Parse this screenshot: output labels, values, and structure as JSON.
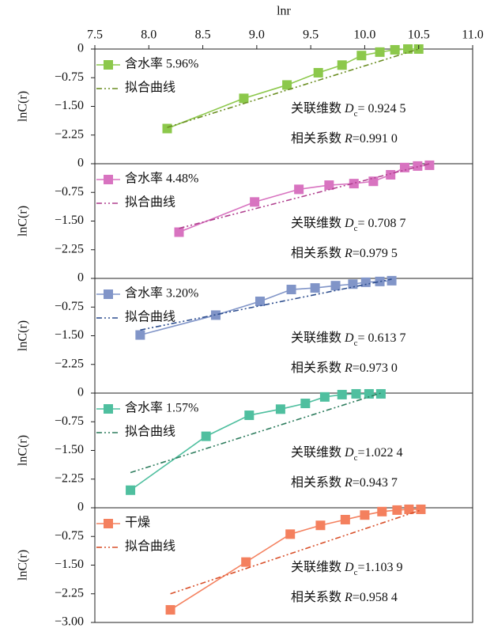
{
  "chart_data": [
    {
      "type": "line",
      "xlabel": "lnr",
      "ylabel": "lnC(r)",
      "xlim": [
        7.5,
        11.0
      ],
      "xticks": [
        7.5,
        {
          "value": 8,
          "label": "8.0"
        },
        8.5,
        {
          "value": 9,
          "label": "9.0"
        },
        9.5,
        {
          "value": 10,
          "label": "10.0"
        },
        10.5,
        {
          "value": 11,
          "label": "11.0"
        }
      ],
      "ylim": [
        -3,
        0
      ],
      "yticks": [
        0,
        {
          "value": -0.75,
          "label": "−0.75"
        },
        {
          "value": -1.5,
          "label": "−1.50"
        },
        {
          "value": -2.25,
          "label": "−2.25"
        }
      ],
      "series": [
        {
          "name": "含水率 5.96%",
          "color": "#8cc84b",
          "x": [
            8.17,
            8.88,
            9.28,
            9.57,
            9.79,
            9.97,
            10.14,
            10.28,
            10.4,
            10.5
          ],
          "values": [
            -2.08,
            -1.29,
            -0.94,
            -0.62,
            -0.42,
            -0.17,
            -0.08,
            -0.02,
            0,
            0
          ]
        },
        {
          "name": "拟合曲线",
          "color": "#6b8e23",
          "x": [
            8.17,
            10.5
          ],
          "values": [
            -2.05,
            0
          ]
        }
      ],
      "annotations": [
        [
          "关联维数 ",
          "D",
          "c",
          "= 0.924 5"
        ],
        [
          "相关系数 ",
          "R",
          "=0.991 0"
        ]
      ]
    },
    {
      "type": "line",
      "ylabel": "lnC(r)",
      "xlim": [
        7.5,
        11.0
      ],
      "ylim": [
        -3,
        0
      ],
      "yticks": [
        0,
        {
          "value": -0.75,
          "label": "−0.75"
        },
        {
          "value": -1.5,
          "label": "−1.50"
        },
        {
          "value": -2.25,
          "label": "−2.25"
        }
      ],
      "series": [
        {
          "name": "含水率 4.48%",
          "color": "#d873c0",
          "x": [
            8.28,
            8.98,
            9.39,
            9.67,
            9.9,
            10.08,
            10.24,
            10.37,
            10.49,
            10.6
          ],
          "values": [
            -1.79,
            -1.0,
            -0.67,
            -0.56,
            -0.52,
            -0.46,
            -0.29,
            -0.1,
            -0.06,
            -0.04
          ]
        },
        {
          "name": "拟合曲线",
          "color": "#b0408f",
          "x": [
            8.28,
            10.6
          ],
          "values": [
            -1.69,
            0
          ]
        }
      ],
      "annotations": [
        [
          "关联维数 ",
          "D",
          "c",
          "= 0.708 7"
        ],
        [
          "相关系数 ",
          "R",
          "=0.979 5"
        ]
      ]
    },
    {
      "type": "line",
      "ylabel": "lnC(r)",
      "xlim": [
        7.5,
        11.0
      ],
      "ylim": [
        -3,
        0
      ],
      "yticks": [
        0,
        {
          "value": -0.75,
          "label": "−0.75"
        },
        {
          "value": -1.5,
          "label": "−1.50"
        },
        {
          "value": -2.25,
          "label": "−2.25"
        }
      ],
      "series": [
        {
          "name": "含水率 3.20%",
          "color": "#8195c8",
          "x": [
            7.92,
            8.62,
            9.03,
            9.32,
            9.54,
            9.73,
            9.89,
            10.01,
            10.14,
            10.25
          ],
          "values": [
            -1.48,
            -0.96,
            -0.6,
            -0.29,
            -0.25,
            -0.19,
            -0.15,
            -0.1,
            -0.08,
            -0.06
          ]
        },
        {
          "name": "拟合曲线",
          "color": "#2f4f8f",
          "x": [
            7.92,
            10.25
          ],
          "values": [
            -1.35,
            -0.02
          ]
        }
      ],
      "annotations": [
        [
          "关联维数 ",
          "D",
          "c",
          "= 0.613 7"
        ],
        [
          "相关系数 ",
          "R",
          "=0.973 0"
        ]
      ]
    },
    {
      "type": "line",
      "ylabel": "lnC(r)",
      "xlim": [
        7.5,
        11.0
      ],
      "ylim": [
        -3,
        0
      ],
      "yticks": [
        0,
        {
          "value": -0.75,
          "label": "−0.75"
        },
        {
          "value": -1.5,
          "label": "−1.50"
        },
        {
          "value": -2.25,
          "label": "−2.25"
        }
      ],
      "series": [
        {
          "name": "含水率 1.57%",
          "color": "#4fbf9f",
          "x": [
            7.83,
            8.53,
            8.93,
            9.22,
            9.45,
            9.63,
            9.79,
            9.92,
            10.04,
            10.15
          ],
          "values": [
            -2.54,
            -1.13,
            -0.58,
            -0.42,
            -0.27,
            -0.1,
            -0.04,
            -0.02,
            -0.02,
            -0.02
          ]
        },
        {
          "name": "拟合曲线",
          "color": "#2e7d5e",
          "x": [
            7.83,
            10.15
          ],
          "values": [
            -2.08,
            0
          ]
        }
      ],
      "annotations": [
        [
          "关联维数 ",
          "D",
          "c",
          "=1.022 4"
        ],
        [
          "相关系数 ",
          "R",
          "=0.943 7"
        ]
      ]
    },
    {
      "type": "line",
      "ylabel": "lnC(r)",
      "xlim": [
        7.5,
        11.0
      ],
      "ylim": [
        -3,
        0
      ],
      "yticks": [
        0,
        {
          "value": -0.75,
          "label": "−0.75"
        },
        {
          "value": -1.5,
          "label": "−1.50"
        },
        {
          "value": -2.25,
          "label": "−2.25"
        },
        {
          "value": -3,
          "label": "−3.00"
        }
      ],
      "series": [
        {
          "name": "干燥",
          "color": "#f4805e",
          "x": [
            8.2,
            8.9,
            9.31,
            9.59,
            9.82,
            10.0,
            10.16,
            10.3,
            10.41,
            10.52
          ],
          "values": [
            -2.67,
            -1.42,
            -0.69,
            -0.46,
            -0.31,
            -0.19,
            -0.1,
            -0.06,
            -0.04,
            -0.04
          ]
        },
        {
          "name": "拟合曲线",
          "color": "#d9502a",
          "x": [
            8.2,
            10.52
          ],
          "values": [
            -2.25,
            -0.06
          ]
        }
      ],
      "annotations": [
        [
          "关联维数 ",
          "D",
          "c",
          "=1.103 9"
        ],
        [
          "相关系数 ",
          "R",
          "=0.958 4"
        ]
      ]
    }
  ]
}
